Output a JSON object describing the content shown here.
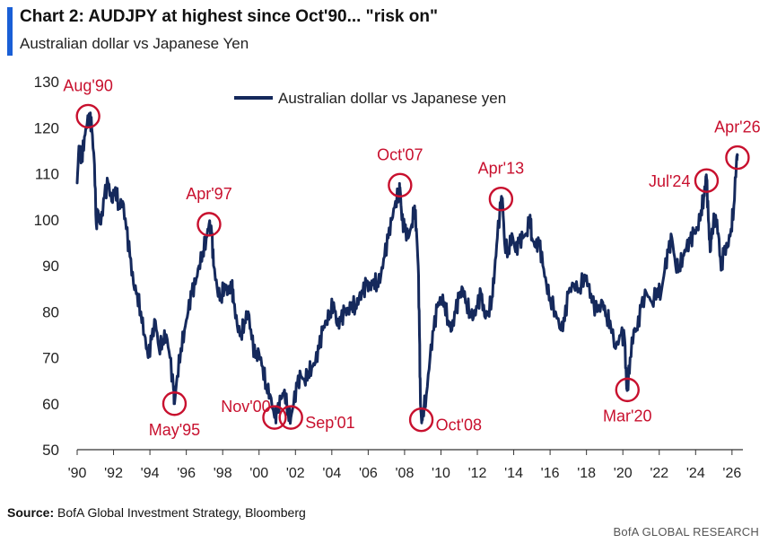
{
  "header": {
    "title": "Chart 2: AUDJPY at highest since Oct'90... \"risk on\"",
    "subtitle": "Australian dollar vs Japanese Yen"
  },
  "footer": {
    "source_label": "Source:",
    "source_text": "BofA Global Investment Strategy, Bloomberg",
    "brand": "BofA GLOBAL RESEARCH"
  },
  "colors": {
    "line": "#15295c",
    "annotation": "#c8102e",
    "accent": "#1a5fd6"
  },
  "chart_data": {
    "type": "line",
    "title": "",
    "xlabel": "",
    "ylabel": "",
    "xlim": [
      1990,
      2026.6
    ],
    "ylim": [
      50,
      130
    ],
    "yticks": [
      50,
      60,
      70,
      80,
      90,
      100,
      110,
      120,
      130
    ],
    "xticks": [
      {
        "x": 1990,
        "label": "'90"
      },
      {
        "x": 1992,
        "label": "'92"
      },
      {
        "x": 1994,
        "label": "'94"
      },
      {
        "x": 1996,
        "label": "'96"
      },
      {
        "x": 1998,
        "label": "'98"
      },
      {
        "x": 2000,
        "label": "'00"
      },
      {
        "x": 2002,
        "label": "'02"
      },
      {
        "x": 2004,
        "label": "'04"
      },
      {
        "x": 2006,
        "label": "'06"
      },
      {
        "x": 2008,
        "label": "'08"
      },
      {
        "x": 2010,
        "label": "'10"
      },
      {
        "x": 2012,
        "label": "'12"
      },
      {
        "x": 2014,
        "label": "'14"
      },
      {
        "x": 2016,
        "label": "'16"
      },
      {
        "x": 2018,
        "label": "'18"
      },
      {
        "x": 2020,
        "label": "'20"
      },
      {
        "x": 2022,
        "label": "'22"
      },
      {
        "x": 2024,
        "label": "'24"
      },
      {
        "x": 2026,
        "label": "'26"
      }
    ],
    "legend": {
      "position": "top-center"
    },
    "series": [
      {
        "name": "Australian dollar vs Japanese yen",
        "points": [
          [
            1990.0,
            108
          ],
          [
            1990.1,
            116
          ],
          [
            1990.25,
            113
          ],
          [
            1990.4,
            118
          ],
          [
            1990.55,
            121
          ],
          [
            1990.7,
            122
          ],
          [
            1990.8,
            120
          ],
          [
            1990.95,
            112
          ],
          [
            1991.05,
            99
          ],
          [
            1991.15,
            102
          ],
          [
            1991.3,
            99
          ],
          [
            1991.5,
            105
          ],
          [
            1991.7,
            108
          ],
          [
            1991.9,
            104
          ],
          [
            1992.1,
            107
          ],
          [
            1992.3,
            103
          ],
          [
            1992.5,
            104
          ],
          [
            1992.7,
            98
          ],
          [
            1992.9,
            92
          ],
          [
            1993.1,
            86
          ],
          [
            1993.3,
            84
          ],
          [
            1993.5,
            80
          ],
          [
            1993.7,
            75
          ],
          [
            1993.9,
            70
          ],
          [
            1994.1,
            74
          ],
          [
            1994.3,
            78
          ],
          [
            1994.5,
            72
          ],
          [
            1994.7,
            74
          ],
          [
            1994.9,
            75
          ],
          [
            1995.1,
            70
          ],
          [
            1995.3,
            63
          ],
          [
            1995.35,
            60
          ],
          [
            1995.5,
            66
          ],
          [
            1995.7,
            72
          ],
          [
            1995.9,
            76
          ],
          [
            1996.1,
            80
          ],
          [
            1996.3,
            84
          ],
          [
            1996.5,
            86
          ],
          [
            1996.7,
            90
          ],
          [
            1996.9,
            93
          ],
          [
            1997.1,
            96
          ],
          [
            1997.25,
            99
          ],
          [
            1997.4,
            97
          ],
          [
            1997.5,
            90
          ],
          [
            1997.7,
            85
          ],
          [
            1997.9,
            83
          ],
          [
            1998.1,
            86
          ],
          [
            1998.3,
            84
          ],
          [
            1998.5,
            86
          ],
          [
            1998.6,
            82
          ],
          [
            1998.8,
            77
          ],
          [
            1999.0,
            75
          ],
          [
            1999.2,
            78
          ],
          [
            1999.4,
            80
          ],
          [
            1999.6,
            74
          ],
          [
            1999.8,
            70
          ],
          [
            2000.0,
            71
          ],
          [
            2000.2,
            68
          ],
          [
            2000.4,
            64
          ],
          [
            2000.6,
            62
          ],
          [
            2000.85,
            57
          ],
          [
            2001.0,
            58
          ],
          [
            2001.2,
            61
          ],
          [
            2001.4,
            63
          ],
          [
            2001.6,
            58
          ],
          [
            2001.75,
            57
          ],
          [
            2001.9,
            60
          ],
          [
            2002.1,
            64
          ],
          [
            2002.3,
            66
          ],
          [
            2002.5,
            65
          ],
          [
            2002.7,
            67
          ],
          [
            2002.9,
            68
          ],
          [
            2003.1,
            69
          ],
          [
            2003.3,
            72
          ],
          [
            2003.5,
            76
          ],
          [
            2003.7,
            78
          ],
          [
            2003.9,
            80
          ],
          [
            2004.1,
            82
          ],
          [
            2004.3,
            77
          ],
          [
            2004.5,
            78
          ],
          [
            2004.7,
            80
          ],
          [
            2004.9,
            80
          ],
          [
            2005.1,
            82
          ],
          [
            2005.3,
            81
          ],
          [
            2005.5,
            83
          ],
          [
            2005.7,
            84
          ],
          [
            2005.9,
            86
          ],
          [
            2006.1,
            85
          ],
          [
            2006.3,
            87
          ],
          [
            2006.5,
            86
          ],
          [
            2006.7,
            88
          ],
          [
            2006.9,
            92
          ],
          [
            2007.1,
            96
          ],
          [
            2007.3,
            100
          ],
          [
            2007.5,
            104
          ],
          [
            2007.7,
            106
          ],
          [
            2007.75,
            107
          ],
          [
            2007.85,
            100
          ],
          [
            2008.0,
            98
          ],
          [
            2008.2,
            96
          ],
          [
            2008.4,
            99
          ],
          [
            2008.55,
            103
          ],
          [
            2008.65,
            98
          ],
          [
            2008.75,
            90
          ],
          [
            2008.82,
            75
          ],
          [
            2008.87,
            60
          ],
          [
            2008.92,
            57
          ],
          [
            2009.0,
            58
          ],
          [
            2009.2,
            62
          ],
          [
            2009.4,
            70
          ],
          [
            2009.6,
            76
          ],
          [
            2009.8,
            81
          ],
          [
            2010.0,
            83
          ],
          [
            2010.2,
            82
          ],
          [
            2010.4,
            78
          ],
          [
            2010.6,
            76
          ],
          [
            2010.8,
            80
          ],
          [
            2011.0,
            83
          ],
          [
            2011.2,
            85
          ],
          [
            2011.4,
            82
          ],
          [
            2011.6,
            80
          ],
          [
            2011.8,
            79
          ],
          [
            2012.0,
            81
          ],
          [
            2012.2,
            84
          ],
          [
            2012.4,
            79
          ],
          [
            2012.6,
            80
          ],
          [
            2012.8,
            83
          ],
          [
            2012.95,
            89
          ],
          [
            2013.1,
            96
          ],
          [
            2013.3,
            104
          ],
          [
            2013.4,
            103
          ],
          [
            2013.5,
            95
          ],
          [
            2013.7,
            93
          ],
          [
            2013.9,
            97
          ],
          [
            2014.1,
            93
          ],
          [
            2014.3,
            95
          ],
          [
            2014.5,
            96
          ],
          [
            2014.7,
            97
          ],
          [
            2014.9,
            101
          ],
          [
            2015.0,
            96
          ],
          [
            2015.2,
            94
          ],
          [
            2015.4,
            95
          ],
          [
            2015.6,
            90
          ],
          [
            2015.8,
            86
          ],
          [
            2016.0,
            83
          ],
          [
            2016.3,
            80
          ],
          [
            2016.6,
            76
          ],
          [
            2016.8,
            78
          ],
          [
            2017.0,
            84
          ],
          [
            2017.3,
            86
          ],
          [
            2017.6,
            85
          ],
          [
            2017.9,
            88
          ],
          [
            2018.1,
            86
          ],
          [
            2018.3,
            82
          ],
          [
            2018.6,
            80
          ],
          [
            2018.9,
            82
          ],
          [
            2019.1,
            79
          ],
          [
            2019.3,
            78
          ],
          [
            2019.6,
            72
          ],
          [
            2019.9,
            75
          ],
          [
            2020.1,
            74
          ],
          [
            2020.2,
            64
          ],
          [
            2020.25,
            63
          ],
          [
            2020.4,
            70
          ],
          [
            2020.6,
            76
          ],
          [
            2020.8,
            76
          ],
          [
            2021.0,
            81
          ],
          [
            2021.3,
            84
          ],
          [
            2021.6,
            82
          ],
          [
            2021.9,
            85
          ],
          [
            2022.1,
            84
          ],
          [
            2022.3,
            89
          ],
          [
            2022.5,
            93
          ],
          [
            2022.7,
            96
          ],
          [
            2022.9,
            90
          ],
          [
            2023.1,
            90
          ],
          [
            2023.3,
            92
          ],
          [
            2023.5,
            94
          ],
          [
            2023.7,
            95
          ],
          [
            2023.9,
            97
          ],
          [
            2024.1,
            98
          ],
          [
            2024.3,
            102
          ],
          [
            2024.45,
            105
          ],
          [
            2024.55,
            108
          ],
          [
            2024.6,
            109
          ],
          [
            2024.7,
            100
          ],
          [
            2024.8,
            93
          ],
          [
            2024.9,
            98
          ],
          [
            2025.1,
            101
          ],
          [
            2025.25,
            97
          ],
          [
            2025.4,
            89
          ],
          [
            2025.55,
            93
          ],
          [
            2025.75,
            94
          ],
          [
            2025.95,
            98
          ],
          [
            2026.1,
            103
          ],
          [
            2026.25,
            113
          ],
          [
            2026.3,
            114
          ]
        ]
      }
    ],
    "annotations": [
      {
        "label": "Aug'90",
        "x": 1990.6,
        "y": 122.5,
        "label_pos": "above"
      },
      {
        "label": "May'95",
        "x": 1995.35,
        "y": 60,
        "label_pos": "below"
      },
      {
        "label": "Apr'97",
        "x": 1997.25,
        "y": 99,
        "label_pos": "above"
      },
      {
        "label": "Nov'00",
        "x": 2000.85,
        "y": 57,
        "label_pos": "left-above"
      },
      {
        "label": "Sep'01",
        "x": 2001.75,
        "y": 57,
        "label_pos": "right"
      },
      {
        "label": "Oct'07",
        "x": 2007.75,
        "y": 107.5,
        "label_pos": "above"
      },
      {
        "label": "Oct'08",
        "x": 2008.92,
        "y": 56.5,
        "label_pos": "right"
      },
      {
        "label": "Apr'13",
        "x": 2013.3,
        "y": 104.5,
        "label_pos": "above"
      },
      {
        "label": "Mar'20",
        "x": 2020.25,
        "y": 63,
        "label_pos": "below"
      },
      {
        "label": "Jul'24",
        "x": 2024.6,
        "y": 108.5,
        "label_pos": "left"
      },
      {
        "label": "Apr'26",
        "x": 2026.3,
        "y": 113.5,
        "label_pos": "above"
      }
    ]
  }
}
